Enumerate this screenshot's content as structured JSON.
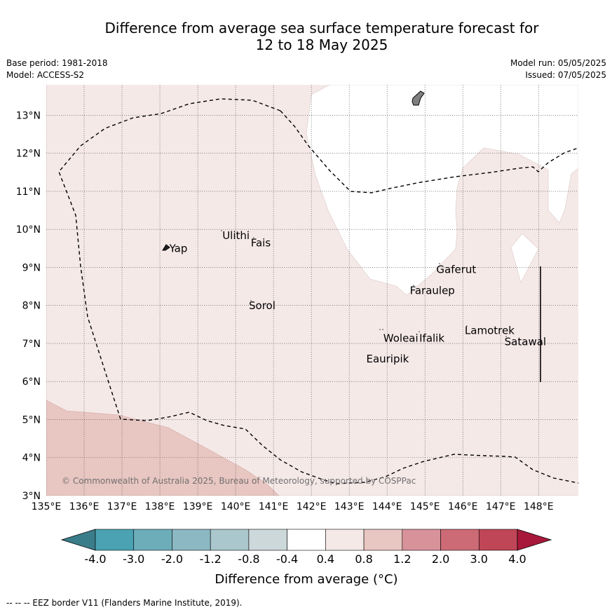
{
  "title_line1": "Difference from average sea surface temperature forecast for",
  "title_line2": "12 to 18 May 2025",
  "base_period": "Base period: 1981-2018",
  "model": "Model: ACCESS-S2",
  "model_run": "Model run: 05/05/2025",
  "issued": "Issued: 07/05/2025",
  "copyright": "© Commonwealth of Australia 2025, Bureau of Meteorology, supported by COSPPac",
  "footnote": "--  --  -- EEZ border V11 (Flanders Marine Institute, 2019).",
  "colorbar": {
    "title": "Difference from average (°C)",
    "labels": [
      "-4.0",
      "-3.0",
      "-2.0",
      "-1.2",
      "-0.8",
      "-0.4",
      "0.4",
      "0.8",
      "1.2",
      "2.0",
      "3.0",
      "4.0"
    ],
    "colors": [
      "#3a7d8a",
      "#4aa2b2",
      "#6dadba",
      "#8bb8c3",
      "#a9c7cd",
      "#cdd8da",
      "#ffffff",
      "#f5e9e8",
      "#e8c6c1",
      "#d8929a",
      "#cc6b76",
      "#bf4656",
      "#a8183a"
    ]
  },
  "axes": {
    "lon_labels": [
      "135°E",
      "136°E",
      "137°E",
      "138°E",
      "139°E",
      "140°E",
      "141°E",
      "142°E",
      "143°E",
      "144°E",
      "145°E",
      "146°E",
      "147°E",
      "148°E"
    ],
    "lon_values": [
      135,
      136,
      137,
      138,
      139,
      140,
      141,
      142,
      143,
      144,
      145,
      146,
      147,
      148
    ],
    "lat_labels": [
      "3°N",
      "4°N",
      "5°N",
      "6°N",
      "7°N",
      "8°N",
      "9°N",
      "10°N",
      "11°N",
      "12°N",
      "13°N"
    ],
    "lat_values": [
      3,
      4,
      5,
      6,
      7,
      8,
      9,
      10,
      11,
      12,
      13
    ],
    "lon_range": [
      135,
      149.05
    ],
    "lat_range": [
      3,
      13.8
    ]
  },
  "places": [
    {
      "name": "Yap",
      "lon": 138.25,
      "lat": 9.4
    },
    {
      "name": "Ulithi",
      "lon": 139.65,
      "lat": 9.75
    },
    {
      "name": "Fais",
      "lon": 140.4,
      "lat": 9.55
    },
    {
      "name": "Sorol",
      "lon": 140.35,
      "lat": 7.9
    },
    {
      "name": "Gaferut",
      "lon": 145.3,
      "lat": 8.85
    },
    {
      "name": "Faraulep",
      "lon": 144.6,
      "lat": 8.3
    },
    {
      "name": "Woleai",
      "lon": 143.9,
      "lat": 7.05
    },
    {
      "name": "Ifalik",
      "lon": 144.85,
      "lat": 7.05
    },
    {
      "name": "Lamotrek",
      "lon": 146.05,
      "lat": 7.25
    },
    {
      "name": "Satawal",
      "lon": 147.1,
      "lat": 6.95
    },
    {
      "name": "Eauripik",
      "lon": 143.45,
      "lat": 6.5
    }
  ]
}
